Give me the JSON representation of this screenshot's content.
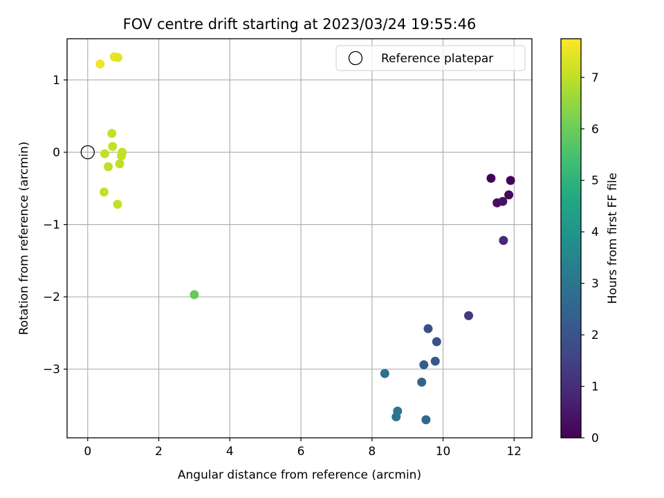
{
  "chart_data": {
    "type": "scatter",
    "title": "FOV centre drift starting at 2023/03/24 19:55:46",
    "xlabel": "Angular distance from reference (arcmin)",
    "ylabel": "Rotation from reference (arcmin)",
    "xlim": [
      -0.58,
      12.5
    ],
    "ylim": [
      -3.95,
      1.57
    ],
    "xticks": [
      0,
      2,
      4,
      6,
      8,
      10,
      12
    ],
    "yticks": [
      1,
      0,
      -1,
      -2,
      -3
    ],
    "grid": true,
    "legend": {
      "label": "Reference platepar",
      "placement": "top-right",
      "marker": "open-circle"
    },
    "reference_point": {
      "x": 0,
      "y": 0
    },
    "colorbar": {
      "label": "Hours from first FF file",
      "range": [
        0,
        7.75
      ],
      "ticks": [
        0,
        1,
        2,
        3,
        4,
        5,
        6,
        7
      ],
      "colormap": "viridis"
    },
    "points": [
      {
        "x": 11.35,
        "y": -0.36,
        "c": 0.05
      },
      {
        "x": 11.9,
        "y": -0.39,
        "c": 0.08
      },
      {
        "x": 11.85,
        "y": -0.59,
        "c": 0.15
      },
      {
        "x": 11.52,
        "y": -0.7,
        "c": 0.3
      },
      {
        "x": 11.68,
        "y": -0.68,
        "c": 0.35
      },
      {
        "x": 11.7,
        "y": -1.22,
        "c": 0.9
      },
      {
        "x": 10.72,
        "y": -2.26,
        "c": 1.25
      },
      {
        "x": 9.58,
        "y": -2.44,
        "c": 1.8
      },
      {
        "x": 9.82,
        "y": -2.62,
        "c": 1.95
      },
      {
        "x": 9.78,
        "y": -2.89,
        "c": 2.1
      },
      {
        "x": 9.46,
        "y": -2.94,
        "c": 2.25
      },
      {
        "x": 9.4,
        "y": -3.18,
        "c": 2.45
      },
      {
        "x": 9.52,
        "y": -3.7,
        "c": 2.6
      },
      {
        "x": 8.36,
        "y": -3.06,
        "c": 2.8
      },
      {
        "x": 8.72,
        "y": -3.58,
        "c": 2.95
      },
      {
        "x": 8.68,
        "y": -3.66,
        "c": 3.0
      },
      {
        "x": 3.0,
        "y": -1.97,
        "c": 5.9
      },
      {
        "x": 0.35,
        "y": 1.22,
        "c": 7.6
      },
      {
        "x": 0.75,
        "y": 1.32,
        "c": 7.5
      },
      {
        "x": 0.85,
        "y": 1.31,
        "c": 7.45
      },
      {
        "x": 0.68,
        "y": 0.26,
        "c": 7.1
      },
      {
        "x": 0.7,
        "y": 0.08,
        "c": 7.1
      },
      {
        "x": 0.48,
        "y": -0.02,
        "c": 7.05
      },
      {
        "x": 0.97,
        "y": 0.0,
        "c": 7.05
      },
      {
        "x": 0.95,
        "y": -0.05,
        "c": 7.05
      },
      {
        "x": 0.9,
        "y": -0.16,
        "c": 7.0
      },
      {
        "x": 0.58,
        "y": -0.2,
        "c": 7.0
      },
      {
        "x": 0.46,
        "y": -0.55,
        "c": 7.05
      },
      {
        "x": 0.84,
        "y": -0.72,
        "c": 7.05
      }
    ]
  }
}
